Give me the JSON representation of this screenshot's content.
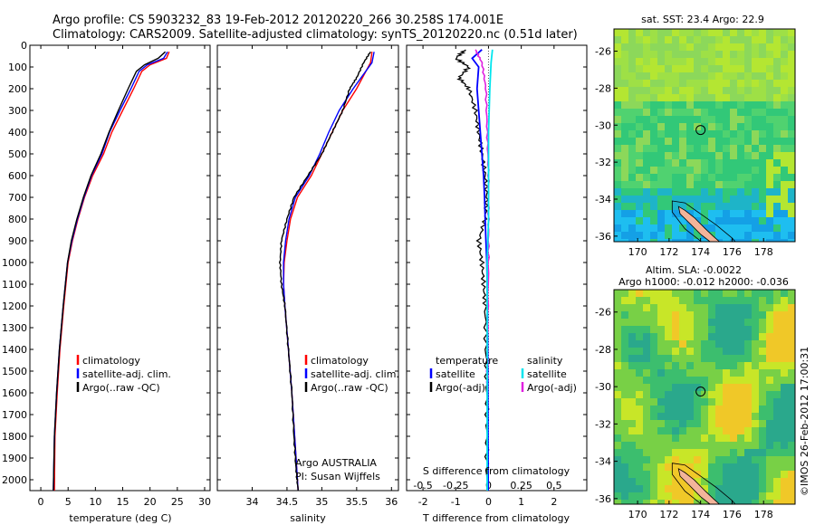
{
  "header": {
    "title_line1": "Argo profile: CS 5903232_83 19-Feb-2012 20120220_266 30.258S 174.001E",
    "title_line2": "Climatology: CARS2009. Satellite-adjusted climatology: synTS_20120220.nc (0.51d later)"
  },
  "credit": "©IMOS 26-Feb-2012 17:00:31",
  "colors": {
    "climatology": "#ff0000",
    "satellite": "#0000ff",
    "argo": "#000000",
    "salinity_satellite": "#00e5ee",
    "salinity_argo": "#e020e0"
  },
  "chart_data": [
    {
      "type": "line",
      "name": "temperature-profile",
      "xlabel": "temperature (deg C)",
      "xlim": [
        -2,
        31
      ],
      "ylim": [
        2050,
        0
      ],
      "xticks": [
        0,
        5,
        10,
        15,
        20,
        25,
        30
      ],
      "yticks": [
        0,
        100,
        200,
        300,
        400,
        500,
        600,
        700,
        800,
        900,
        1000,
        1100,
        1200,
        1300,
        1400,
        1500,
        1600,
        1700,
        1800,
        1900,
        2000
      ],
      "legend": [
        "climatology",
        "satellite-adj. clim.",
        "Argo(..raw -QC)"
      ],
      "legend_position": "lower-center",
      "series": [
        {
          "name": "climatology",
          "x": [
            23.5,
            23.0,
            20.0,
            18.5,
            17.0,
            15.0,
            13.0,
            11.5,
            9.5,
            8.0,
            6.8,
            5.8,
            5.0,
            4.2,
            3.5,
            3.0,
            2.6,
            2.5
          ],
          "y": [
            30,
            60,
            90,
            120,
            200,
            300,
            400,
            500,
            600,
            700,
            800,
            900,
            1000,
            1200,
            1400,
            1600,
            1800,
            2050
          ]
        },
        {
          "name": "satellite-adj. clim.",
          "x": [
            23.2,
            22.5,
            19.5,
            18.0,
            16.5,
            14.5,
            12.6,
            11.2,
            9.3,
            7.9,
            6.7,
            5.7,
            4.9,
            4.1,
            3.4,
            2.9,
            2.5,
            2.3
          ],
          "y": [
            30,
            60,
            90,
            120,
            200,
            300,
            400,
            500,
            600,
            700,
            800,
            900,
            1000,
            1200,
            1400,
            1600,
            1800,
            2050
          ]
        },
        {
          "name": "Argo(..raw -QC)",
          "x": [
            22.8,
            21.5,
            19.0,
            17.5,
            16.0,
            14.2,
            12.5,
            11.0,
            9.2,
            7.8,
            6.6,
            5.6,
            4.9,
            4.1,
            3.4,
            2.9,
            2.5,
            2.3
          ],
          "y": [
            30,
            60,
            90,
            120,
            200,
            300,
            400,
            500,
            600,
            700,
            800,
            900,
            1000,
            1200,
            1400,
            1600,
            1800,
            2050
          ]
        }
      ]
    },
    {
      "type": "line",
      "name": "salinity-profile",
      "xlabel": "salinity",
      "xlim": [
        33.5,
        36.1
      ],
      "ylim": [
        2050,
        0
      ],
      "xticks": [
        34,
        34.5,
        35,
        35.5,
        36
      ],
      "legend": [
        "climatology",
        "satellite-adj. clim.",
        "Argo(..raw -QC)"
      ],
      "legend_position": "lower-center",
      "annotation": [
        "Argo AUSTRALIA",
        "PI: Susan Wijffels"
      ],
      "series": [
        {
          "name": "climatology",
          "x": [
            35.72,
            35.7,
            35.5,
            35.3,
            35.15,
            35.0,
            34.85,
            34.65,
            34.55,
            34.5,
            34.46,
            34.45,
            34.47,
            34.52,
            34.57,
            34.61,
            34.64,
            34.66
          ],
          "y": [
            30,
            80,
            200,
            300,
            400,
            500,
            600,
            700,
            800,
            900,
            1000,
            1100,
            1200,
            1400,
            1600,
            1800,
            1950,
            2050
          ]
        },
        {
          "name": "satellite-adj. clim.",
          "x": [
            35.75,
            35.72,
            35.45,
            35.25,
            35.1,
            34.97,
            34.82,
            34.62,
            34.53,
            34.48,
            34.45,
            34.45,
            34.47,
            34.52,
            34.57,
            34.61,
            34.64,
            34.66
          ],
          "y": [
            30,
            80,
            200,
            300,
            400,
            500,
            600,
            700,
            800,
            900,
            1000,
            1100,
            1200,
            1400,
            1600,
            1800,
            1950,
            2050
          ]
        },
        {
          "name": "Argo(..raw -QC)",
          "x": [
            35.7,
            35.6,
            35.5,
            35.4,
            35.3,
            35.15,
            35.0,
            34.8,
            34.6,
            34.5,
            34.42,
            34.4,
            34.42,
            34.47,
            34.52,
            34.57,
            34.6,
            34.63,
            34.66
          ],
          "y": [
            30,
            80,
            150,
            200,
            300,
            400,
            500,
            600,
            700,
            800,
            900,
            1000,
            1100,
            1200,
            1400,
            1600,
            1800,
            1950,
            2050
          ]
        }
      ]
    },
    {
      "type": "line",
      "name": "difference-from-climatology",
      "xlabel": "T difference from climatology",
      "x2label": "S difference from climatology",
      "xlim": [
        -2.5,
        3.0
      ],
      "x2lim": [
        -0.625,
        0.75
      ],
      "ylim": [
        2050,
        0
      ],
      "xticks": [
        -2,
        -1,
        0,
        1,
        2
      ],
      "x2ticks": [
        -0.5,
        -0.25,
        0,
        0.25,
        0.5
      ],
      "legend_temperature": [
        "temperature",
        "satellite",
        "Argo(-adj)"
      ],
      "legend_salinity": [
        "salinity",
        "satellite",
        "Argo(-adj)"
      ],
      "series": [
        {
          "name": "temperature satellite",
          "x": [
            -0.2,
            -0.5,
            -0.3,
            -0.35,
            -0.3,
            -0.25,
            -0.2,
            -0.15,
            -0.12,
            -0.1,
            -0.08,
            -0.05,
            -0.03,
            -0.02,
            -0.01
          ],
          "y": [
            20,
            60,
            100,
            200,
            300,
            400,
            500,
            600,
            700,
            800,
            900,
            1000,
            1200,
            1500,
            2050
          ]
        },
        {
          "name": "temperature Argo(-adj)",
          "x": [
            -0.7,
            -1.0,
            -0.6,
            -0.9,
            -0.6,
            -0.4,
            -0.3,
            -0.2,
            -0.1,
            -0.05,
            -0.1,
            -0.3,
            -0.2,
            -0.15,
            -0.1,
            -0.08,
            -0.05,
            -0.05,
            -0.05
          ],
          "y": [
            20,
            60,
            100,
            150,
            200,
            300,
            400,
            500,
            600,
            700,
            800,
            900,
            1000,
            1100,
            1200,
            1400,
            1600,
            1800,
            2050
          ]
        },
        {
          "name": "salinity satellite",
          "x": [
            0.03,
            0.02,
            0.01,
            0.0,
            0.0,
            0.0,
            -0.01,
            -0.01,
            -0.01,
            -0.01
          ],
          "y": [
            20,
            80,
            200,
            400,
            600,
            800,
            1000,
            1400,
            1800,
            2050
          ]
        },
        {
          "name": "salinity Argo(-adj)",
          "x": [
            -0.1,
            -0.05,
            -0.02,
            -0.01,
            0.0,
            0.0,
            0.0,
            -0.01,
            -0.01
          ],
          "y": [
            20,
            80,
            200,
            400,
            600,
            800,
            1000,
            1400,
            1600
          ]
        }
      ]
    },
    {
      "type": "heatmap",
      "name": "sst-map",
      "title": "sat. SST: 23.4  Argo: 22.9",
      "xticks": [
        "170",
        "172",
        "174",
        "176",
        "178"
      ],
      "yticks": [
        "-26",
        "-28",
        "-30",
        "-32",
        "-34",
        "-36"
      ],
      "xlim": [
        168.5,
        180.0
      ],
      "ylim": [
        -36.3,
        -24.8
      ],
      "marker": {
        "lon": 174.0,
        "lat": -30.26
      }
    },
    {
      "type": "heatmap",
      "name": "sla-map",
      "title_line1": "Altim. SLA: -0.0022",
      "title_line2": "Argo h1000: -0.012  h2000: -0.036",
      "xticks": [
        "170",
        "172",
        "174",
        "176",
        "178"
      ],
      "yticks": [
        "-26",
        "-28",
        "-30",
        "-32",
        "-34",
        "-36"
      ],
      "xlim": [
        168.5,
        180.0
      ],
      "ylim": [
        -36.3,
        -24.8
      ],
      "marker": {
        "lon": 174.0,
        "lat": -30.26
      }
    }
  ]
}
